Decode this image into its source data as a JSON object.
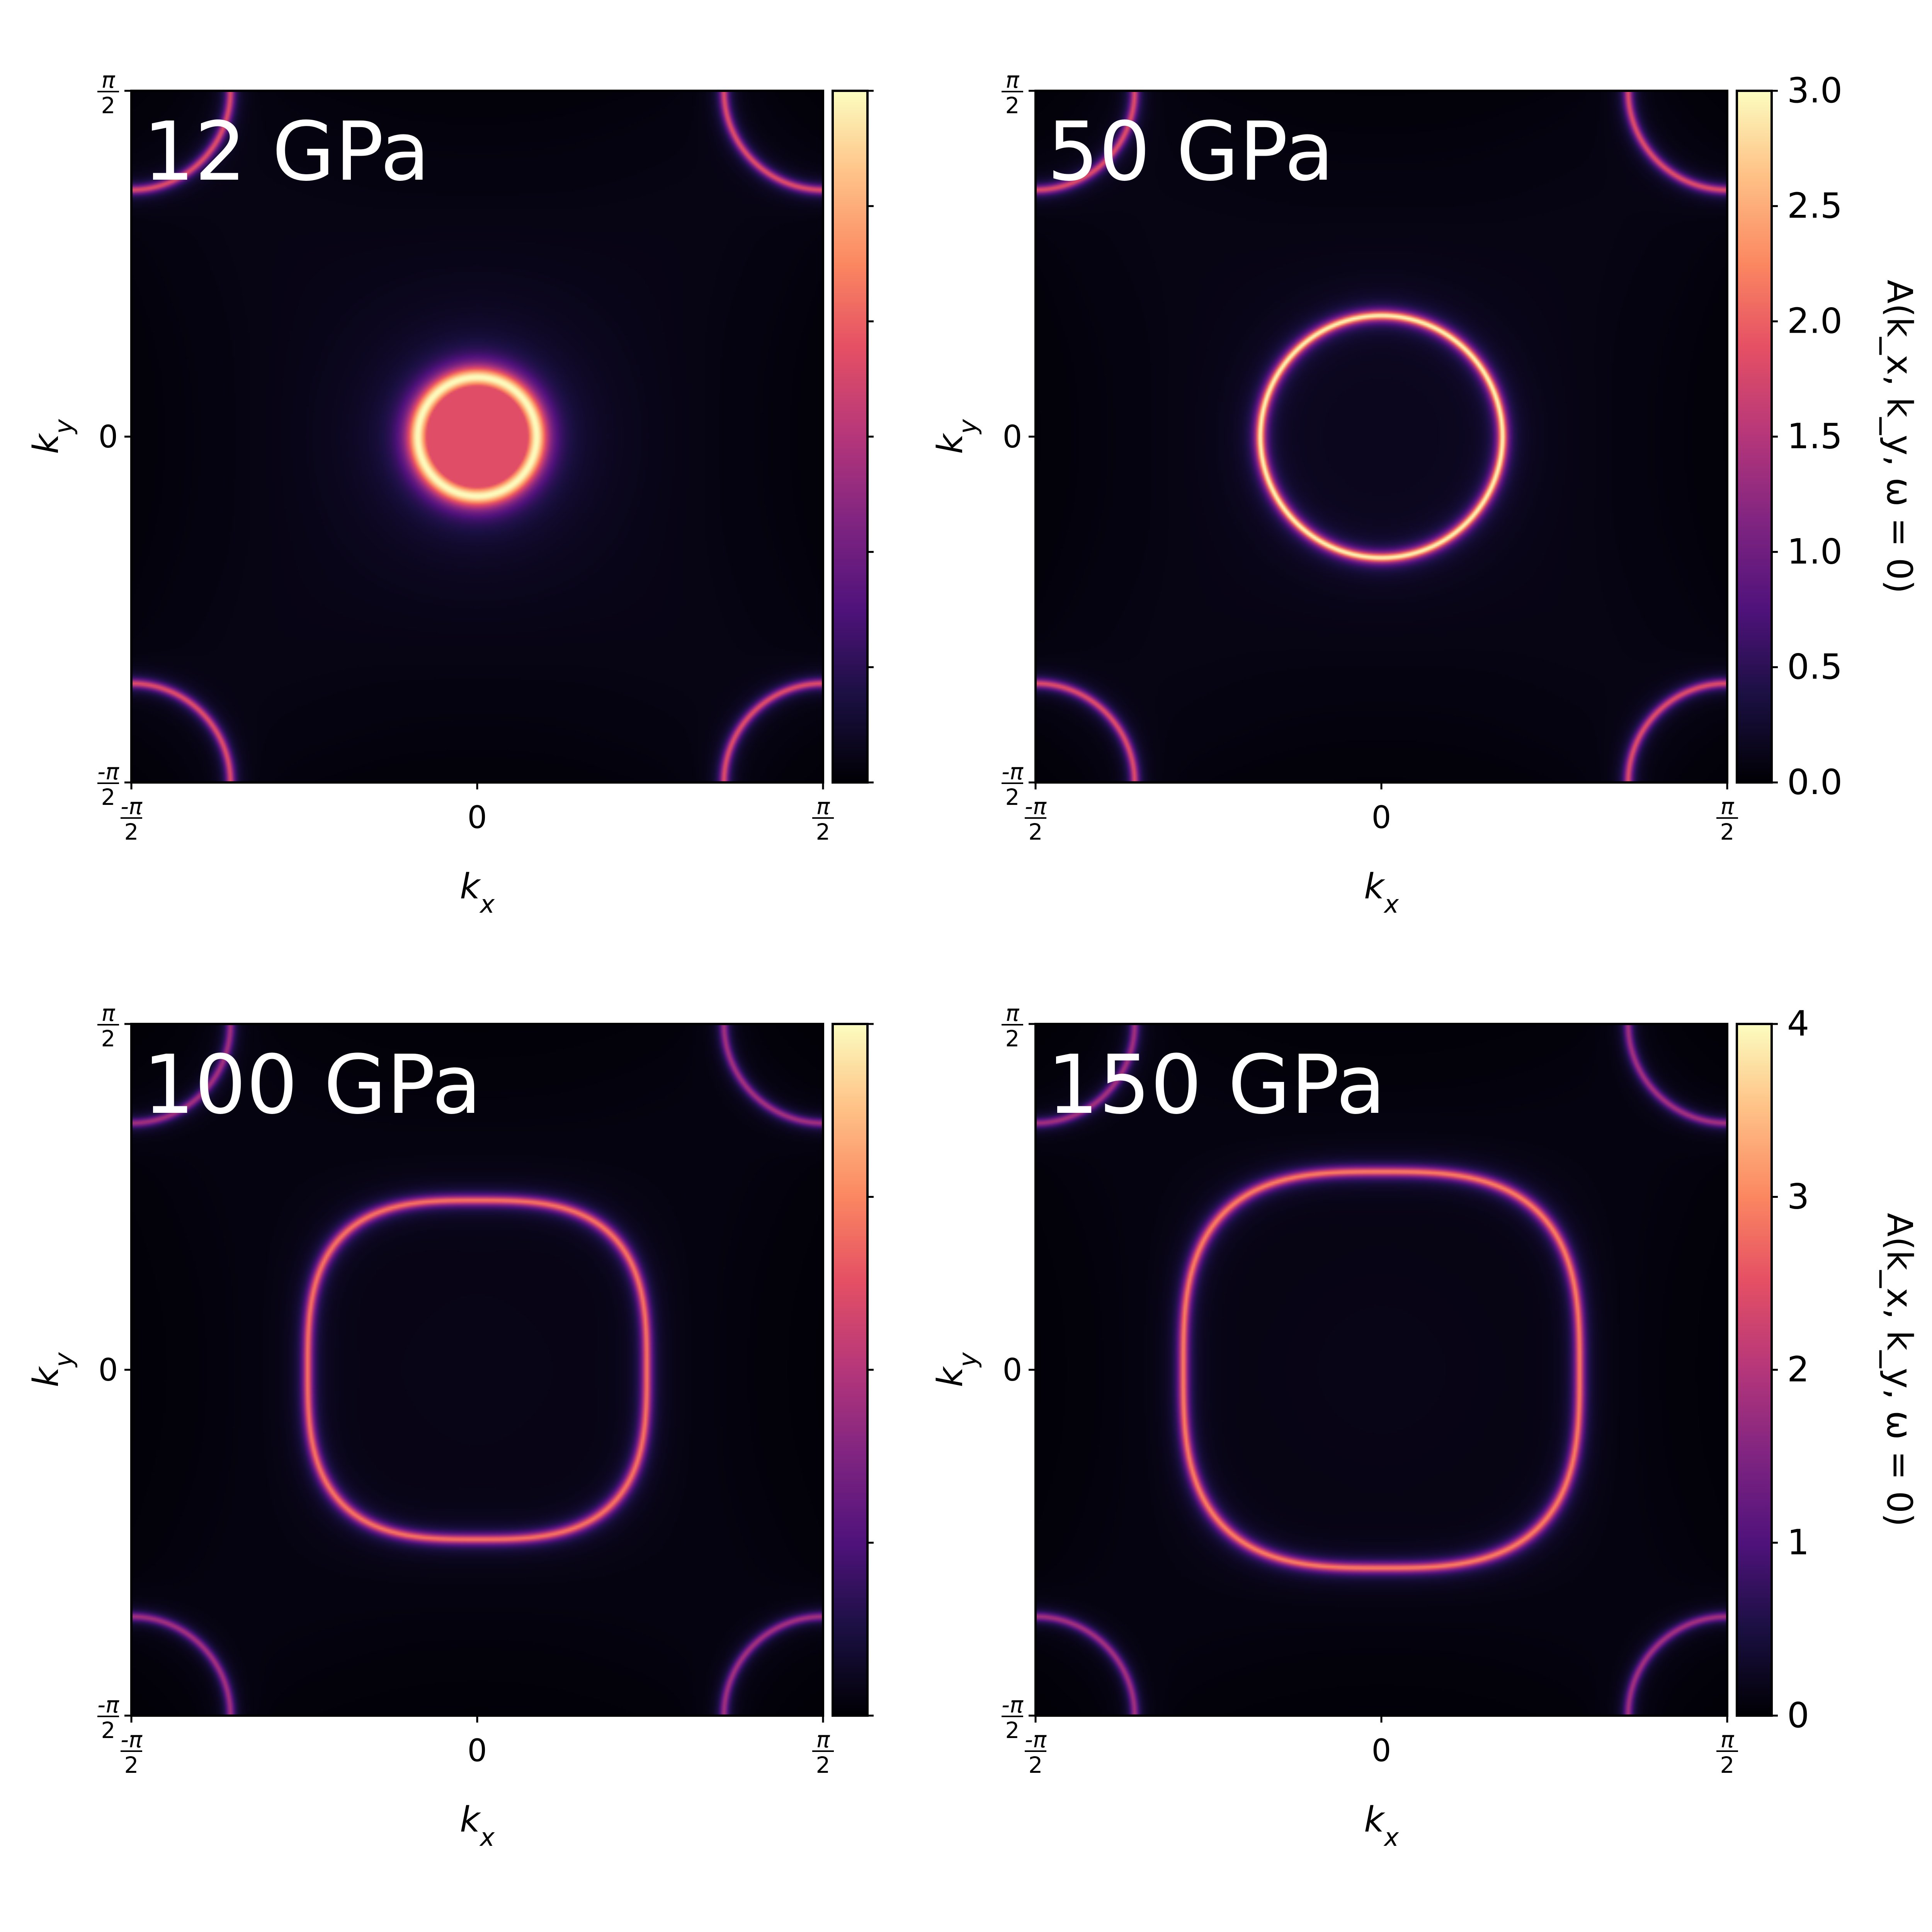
{
  "chart_data": [
    {
      "type": "heatmap",
      "panel_label": "12 GPa",
      "xlabel": "k_x",
      "ylabel": "k_y",
      "x_ticks": [
        {
          "value": -1.5708,
          "label": "-π/2"
        },
        {
          "value": 0,
          "label": "0"
        },
        {
          "value": 1.5708,
          "label": "π/2"
        }
      ],
      "y_ticks": [
        {
          "value": -1.5708,
          "label": "-π/2"
        },
        {
          "value": 0,
          "label": "0"
        },
        {
          "value": 1.5708,
          "label": "π/2"
        }
      ],
      "xlim": [
        -1.5708,
        1.5708
      ],
      "ylim": [
        -1.5708,
        1.5708
      ],
      "colormap": "magma",
      "colorbar": {
        "min": 0,
        "max": 3.0,
        "ticks": [
          0,
          0.5,
          1.0,
          1.5,
          2.0,
          2.5,
          3.0
        ],
        "tick_labels_visible": false,
        "label": ""
      },
      "features": {
        "outer_bands": {
          "edge_offset": 0.45,
          "peak_intensity": 2.0
        },
        "pocket": {
          "kind": "filled disk",
          "radius": 0.27,
          "edge_intensity": 3.0,
          "center_intensity": 1.7
        }
      }
    },
    {
      "type": "heatmap",
      "panel_label": "50 GPa",
      "xlabel": "k_x",
      "ylabel": "k_y",
      "x_ticks": [
        {
          "value": -1.5708,
          "label": "-π/2"
        },
        {
          "value": 0,
          "label": "0"
        },
        {
          "value": 1.5708,
          "label": "π/2"
        }
      ],
      "y_ticks": [
        {
          "value": -1.5708,
          "label": "-π/2"
        },
        {
          "value": 0,
          "label": "0"
        },
        {
          "value": 1.5708,
          "label": "π/2"
        }
      ],
      "xlim": [
        -1.5708,
        1.5708
      ],
      "ylim": [
        -1.5708,
        1.5708
      ],
      "colormap": "magma",
      "colorbar": {
        "min": 0,
        "max": 3.0,
        "ticks": [
          0,
          0.5,
          1.0,
          1.5,
          2.0,
          2.5,
          3.0
        ],
        "tick_labels": [
          "0.0",
          "0.5",
          "1.0",
          "1.5",
          "2.0",
          "2.5",
          "3.0"
        ],
        "tick_labels_visible": true,
        "label": "A(k_x, k_y, ω = 0)"
      },
      "features": {
        "outer_bands": {
          "edge_offset": 0.45,
          "peak_intensity": 2.0
        },
        "pocket": {
          "kind": "ring",
          "radius": 0.55,
          "edge_intensity": 3.0
        }
      }
    },
    {
      "type": "heatmap",
      "panel_label": "100 GPa",
      "xlabel": "k_x",
      "ylabel": "k_y",
      "x_ticks": [
        {
          "value": -1.5708,
          "label": "-π/2"
        },
        {
          "value": 0,
          "label": "0"
        },
        {
          "value": 1.5708,
          "label": "π/2"
        }
      ],
      "y_ticks": [
        {
          "value": -1.5708,
          "label": "-π/2"
        },
        {
          "value": 0,
          "label": "0"
        },
        {
          "value": 1.5708,
          "label": "π/2"
        }
      ],
      "xlim": [
        -1.5708,
        1.5708
      ],
      "ylim": [
        -1.5708,
        1.5708
      ],
      "colormap": "magma",
      "colorbar": {
        "min": 0,
        "max": 4,
        "ticks": [
          0,
          1,
          2,
          3,
          4
        ],
        "tick_labels_visible": false,
        "label": ""
      },
      "features": {
        "outer_bands": {
          "edge_offset": 0.45,
          "peak_intensity": 2.0
        },
        "pocket": {
          "kind": "rounded square",
          "radius": 0.77,
          "edge_intensity": 2.9
        }
      }
    },
    {
      "type": "heatmap",
      "panel_label": "150 GPa",
      "xlabel": "k_x",
      "ylabel": "k_y",
      "x_ticks": [
        {
          "value": -1.5708,
          "label": "-π/2"
        },
        {
          "value": 0,
          "label": "0"
        },
        {
          "value": 1.5708,
          "label": "π/2"
        }
      ],
      "y_ticks": [
        {
          "value": -1.5708,
          "label": "-π/2"
        },
        {
          "value": 0,
          "label": "0"
        },
        {
          "value": 1.5708,
          "label": "π/2"
        }
      ],
      "xlim": [
        -1.5708,
        1.5708
      ],
      "ylim": [
        -1.5708,
        1.5708
      ],
      "colormap": "magma",
      "colorbar": {
        "min": 0,
        "max": 4,
        "ticks": [
          0,
          1,
          2,
          3,
          4
        ],
        "tick_labels": [
          "0",
          "1",
          "2",
          "3",
          "4"
        ],
        "tick_labels_visible": true,
        "label": "A(k_x, k_y, ω = 0)"
      },
      "features": {
        "outer_bands": {
          "edge_offset": 0.45,
          "peak_intensity": 2.0
        },
        "pocket": {
          "kind": "rounded square",
          "radius": 0.9,
          "edge_intensity": 3.0
        }
      }
    }
  ]
}
